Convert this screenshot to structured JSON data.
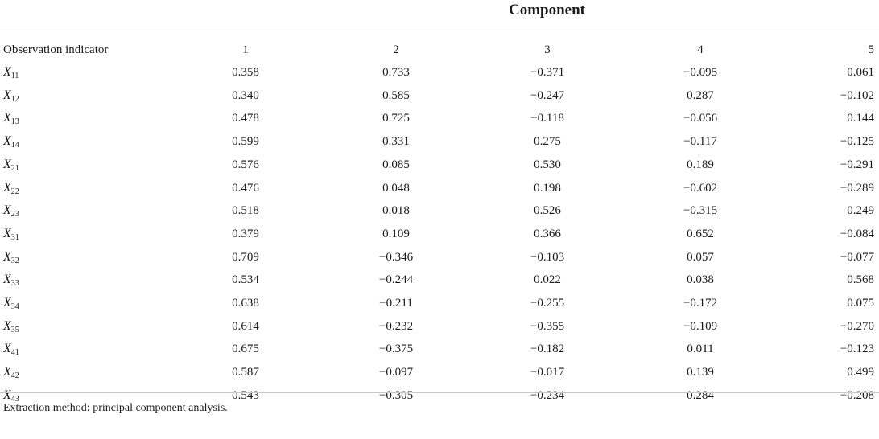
{
  "table": {
    "group_header": "Component",
    "columns": [
      "Observation indicator",
      "1",
      "2",
      "3",
      "4",
      "5"
    ],
    "rows": [
      {
        "var": "X",
        "sub": "11",
        "values": [
          "0.358",
          "0.733",
          "−0.371",
          "−0.095",
          "0.061"
        ]
      },
      {
        "var": "X",
        "sub": "12",
        "values": [
          "0.340",
          "0.585",
          "−0.247",
          "0.287",
          "−0.102"
        ]
      },
      {
        "var": "X",
        "sub": "13",
        "values": [
          "0.478",
          "0.725",
          "−0.118",
          "−0.056",
          "0.144"
        ]
      },
      {
        "var": "X",
        "sub": "14",
        "values": [
          "0.599",
          "0.331",
          "0.275",
          "−0.117",
          "−0.125"
        ]
      },
      {
        "var": "X",
        "sub": "21",
        "values": [
          "0.576",
          "0.085",
          "0.530",
          "0.189",
          "−0.291"
        ]
      },
      {
        "var": "X",
        "sub": "22",
        "values": [
          "0.476",
          "0.048",
          "0.198",
          "−0.602",
          "−0.289"
        ]
      },
      {
        "var": "X",
        "sub": "23",
        "values": [
          "0.518",
          "0.018",
          "0.526",
          "−0.315",
          "0.249"
        ]
      },
      {
        "var": "X",
        "sub": "31",
        "values": [
          "0.379",
          "0.109",
          "0.366",
          "0.652",
          "−0.084"
        ]
      },
      {
        "var": "X",
        "sub": "32",
        "values": [
          "0.709",
          "−0.346",
          "−0.103",
          "0.057",
          "−0.077"
        ]
      },
      {
        "var": "X",
        "sub": "33",
        "values": [
          "0.534",
          "−0.244",
          "0.022",
          "0.038",
          "0.568"
        ]
      },
      {
        "var": "X",
        "sub": "34",
        "values": [
          "0.638",
          "−0.211",
          "−0.255",
          "−0.172",
          "0.075"
        ]
      },
      {
        "var": "X",
        "sub": "35",
        "values": [
          "0.614",
          "−0.232",
          "−0.355",
          "−0.109",
          "−0.270"
        ]
      },
      {
        "var": "X",
        "sub": "41",
        "values": [
          "0.675",
          "−0.375",
          "−0.182",
          "0.011",
          "−0.123"
        ]
      },
      {
        "var": "X",
        "sub": "42",
        "values": [
          "0.587",
          "−0.097",
          "−0.017",
          "0.139",
          "0.499"
        ]
      },
      {
        "var": "X",
        "sub": "43",
        "values": [
          "0.543",
          "−0.305",
          "−0.234",
          "0.284",
          "−0.208"
        ]
      }
    ],
    "footnote": "Extraction method: principal component analysis."
  }
}
